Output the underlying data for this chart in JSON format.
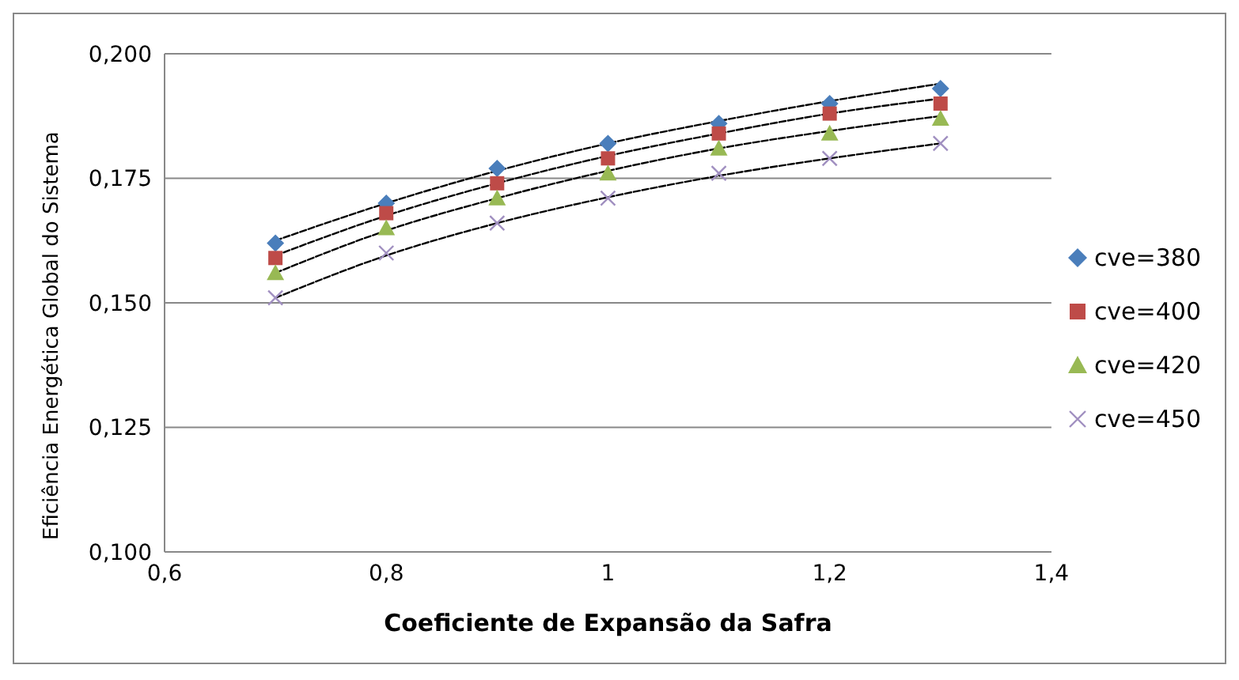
{
  "chart_data": {
    "type": "scatter",
    "xlabel": "Coeficiente de Expansão da Safra",
    "ylabel": "Eficiência Energética Global do Sistema",
    "x": [
      0.7,
      0.8,
      0.9,
      1.0,
      1.1,
      1.2,
      1.3
    ],
    "series": [
      {
        "name": "cve=380",
        "color": "#4a7ebb",
        "marker": "diamond",
        "values": [
          0.162,
          0.17,
          0.177,
          0.182,
          0.186,
          0.19,
          0.193
        ]
      },
      {
        "name": "cve=400",
        "color": "#be4b48",
        "marker": "square",
        "values": [
          0.159,
          0.168,
          0.174,
          0.179,
          0.184,
          0.188,
          0.19
        ]
      },
      {
        "name": "cve=420",
        "color": "#98b954",
        "marker": "triangle",
        "values": [
          0.156,
          0.165,
          0.171,
          0.176,
          0.181,
          0.184,
          0.187
        ]
      },
      {
        "name": "cve=450",
        "color": "#a08fc0",
        "marker": "cross",
        "values": [
          0.151,
          0.16,
          0.166,
          0.171,
          0.176,
          0.179,
          0.182
        ]
      },
      {
        "type": "line",
        "color": "#000000",
        "line_style": "dashed",
        "marker": "none",
        "values": [
          0.1625,
          0.17,
          0.1765,
          0.182,
          0.1865,
          0.1905,
          0.194
        ]
      },
      {
        "type": "line",
        "color": "#000000",
        "line_style": "dashed",
        "marker": "none",
        "values": [
          0.1595,
          0.1675,
          0.174,
          0.1795,
          0.184,
          0.188,
          0.191
        ]
      },
      {
        "type": "line",
        "color": "#000000",
        "line_style": "dashed",
        "marker": "none",
        "values": [
          0.156,
          0.1645,
          0.171,
          0.1765,
          0.181,
          0.1845,
          0.1875
        ]
      },
      {
        "type": "line",
        "color": "#000000",
        "line_style": "dashed",
        "marker": "none",
        "values": [
          0.151,
          0.1595,
          0.166,
          0.1712,
          0.1755,
          0.179,
          0.182
        ]
      }
    ],
    "xlim": [
      0.6,
      1.4
    ],
    "xticks": [
      {
        "value": 0.6,
        "label": "0,6"
      },
      {
        "value": 0.8,
        "label": "0,8"
      },
      {
        "value": 1.0,
        "label": "1"
      },
      {
        "value": 1.2,
        "label": "1,2"
      },
      {
        "value": 1.4,
        "label": "1,4"
      }
    ],
    "ylim": [
      0.1,
      0.2
    ],
    "yticks": [
      {
        "value": 0.1,
        "label": "0,100"
      },
      {
        "value": 0.125,
        "label": "0,125"
      },
      {
        "value": 0.15,
        "label": "0,150"
      },
      {
        "value": 0.175,
        "label": "0,175"
      },
      {
        "value": 0.2,
        "label": "0,200"
      }
    ],
    "grid": "y",
    "legend": "right"
  }
}
